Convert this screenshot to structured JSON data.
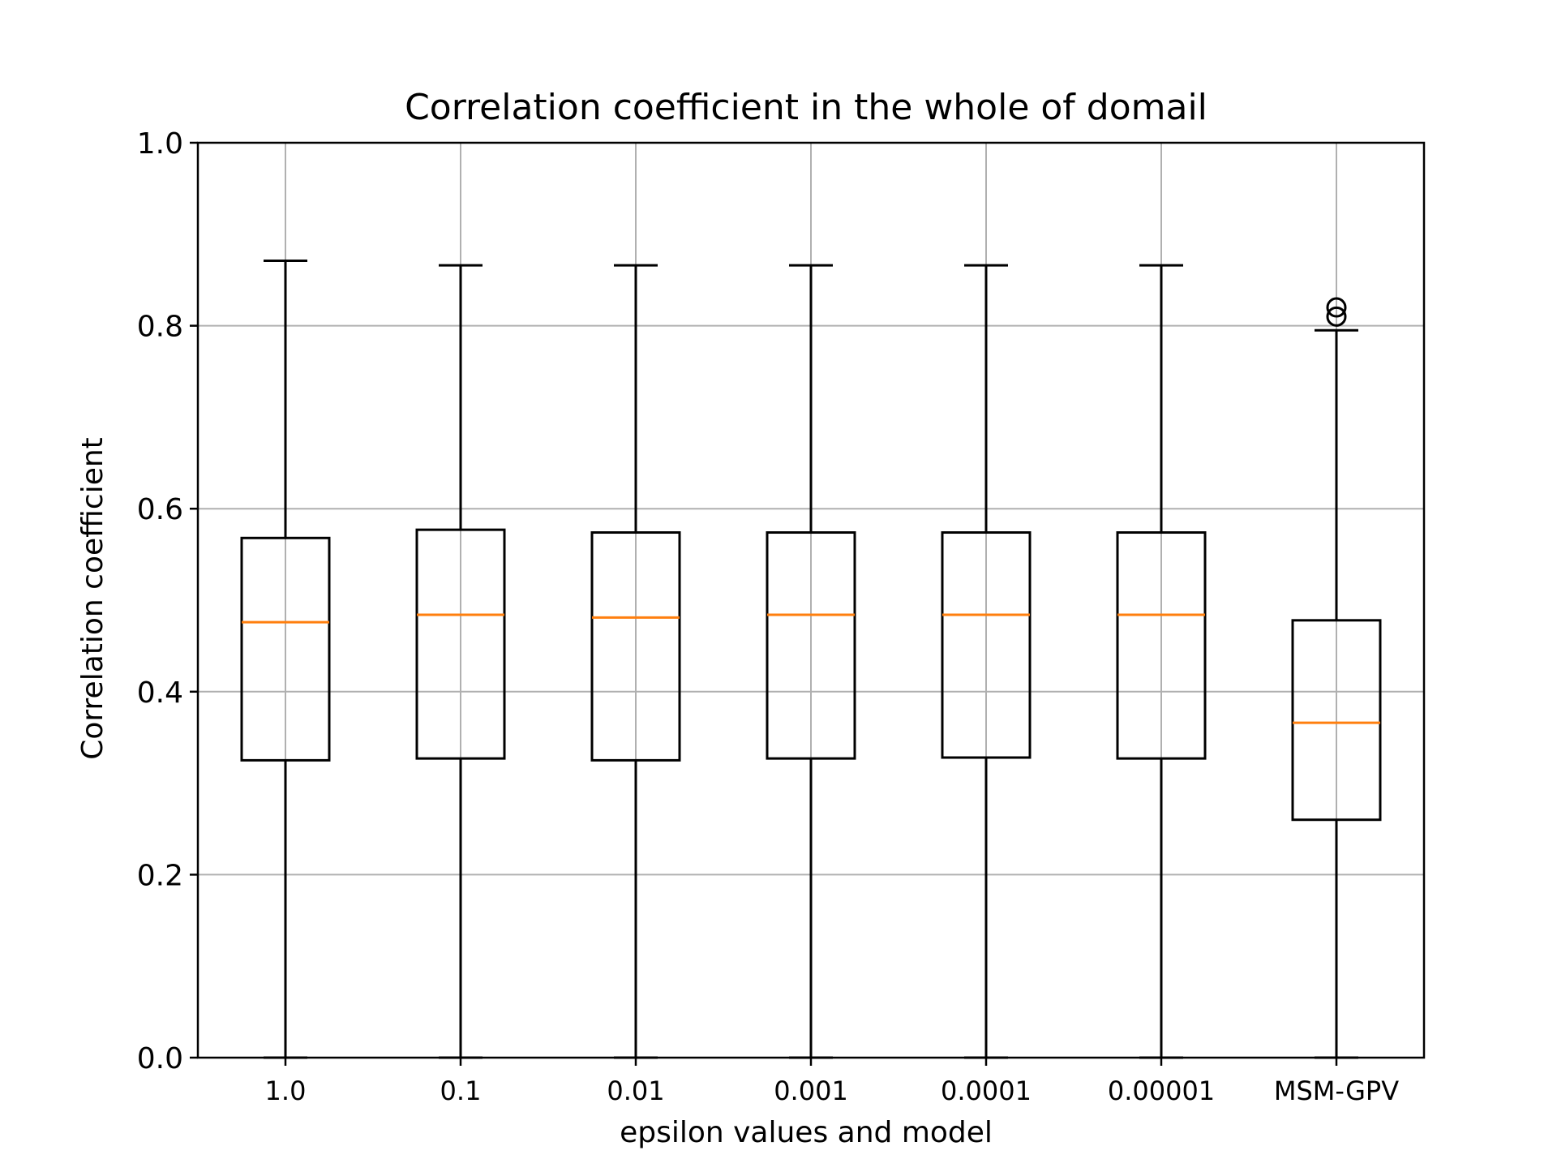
{
  "chart_data": {
    "type": "box",
    "title": "Correlation coefficient in the whole of domail",
    "xlabel": "epsilon values and model",
    "ylabel": "Correlation coefficient",
    "ylim": [
      0.0,
      1.0
    ],
    "yticks": [
      "0.0",
      "0.2",
      "0.4",
      "0.6",
      "0.8",
      "1.0"
    ],
    "categories": [
      "1.0",
      "0.1",
      "0.01",
      "0.001",
      "0.0001",
      "0.00001",
      "MSM-GPV"
    ],
    "boxes": [
      {
        "category": "1.0",
        "whisker_low": 0.0,
        "q1": 0.325,
        "median": 0.476,
        "q3": 0.568,
        "whisker_high": 0.871,
        "outliers": []
      },
      {
        "category": "0.1",
        "whisker_low": 0.0,
        "q1": 0.327,
        "median": 0.484,
        "q3": 0.577,
        "whisker_high": 0.866,
        "outliers": []
      },
      {
        "category": "0.01",
        "whisker_low": 0.0,
        "q1": 0.325,
        "median": 0.481,
        "q3": 0.574,
        "whisker_high": 0.866,
        "outliers": []
      },
      {
        "category": "0.001",
        "whisker_low": 0.0,
        "q1": 0.327,
        "median": 0.484,
        "q3": 0.574,
        "whisker_high": 0.866,
        "outliers": []
      },
      {
        "category": "0.0001",
        "whisker_low": 0.0,
        "q1": 0.328,
        "median": 0.484,
        "q3": 0.574,
        "whisker_high": 0.866,
        "outliers": []
      },
      {
        "category": "0.00001",
        "whisker_low": 0.0,
        "q1": 0.327,
        "median": 0.484,
        "q3": 0.574,
        "whisker_high": 0.866,
        "outliers": []
      },
      {
        "category": "MSM-GPV",
        "whisker_low": 0.0,
        "q1": 0.26,
        "median": 0.366,
        "q3": 0.478,
        "whisker_high": 0.795,
        "outliers": [
          0.81,
          0.82
        ]
      }
    ],
    "grid": true,
    "colors": {
      "box": "#000000",
      "median": "#ff7f0e",
      "grid": "#b0b0b0"
    }
  }
}
